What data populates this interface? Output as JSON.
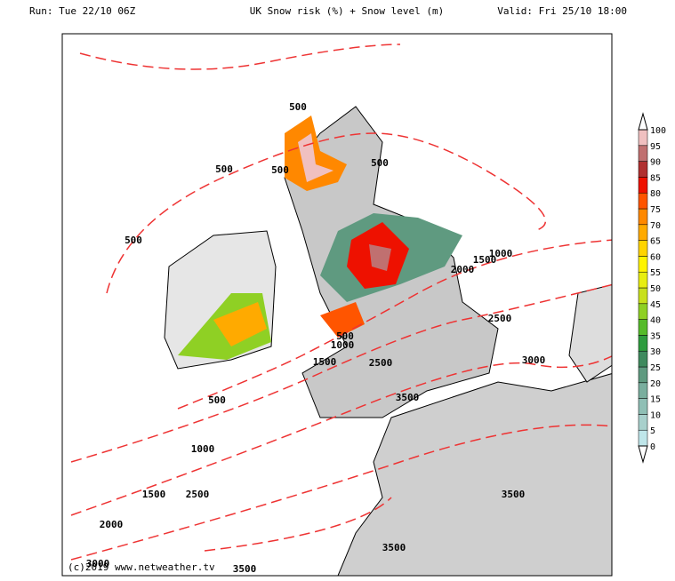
{
  "header": {
    "run": "Run: Tue 22/10 06Z",
    "title": "UK Snow risk (%) + Snow level (m)",
    "valid": "Valid: Fri 25/10 18:00"
  },
  "snow_level_labels": [
    500,
    500,
    500,
    500,
    500,
    1000,
    1500,
    2000,
    2500,
    500,
    1000,
    1500,
    2500,
    3000,
    3500,
    500,
    1000,
    1500,
    2500,
    2000,
    3500,
    3500,
    3000,
    3500
  ],
  "colorbar": {
    "levels": [
      0,
      5,
      10,
      15,
      20,
      25,
      30,
      35,
      40,
      45,
      50,
      55,
      60,
      65,
      70,
      75,
      80,
      85,
      90,
      95,
      100
    ],
    "colors": [
      "#bfe6ea",
      "#a8d0cc",
      "#8fbfb5",
      "#79ae9e",
      "#5f9a80",
      "#3f8a5e",
      "#2e9c3e",
      "#55bb2a",
      "#8fd024",
      "#c8e01c",
      "#e8ee10",
      "#fff400",
      "#ffd400",
      "#ffaa00",
      "#ff8800",
      "#ff5500",
      "#ee1100",
      "#b03030",
      "#c07070",
      "#f0c0c0"
    ]
  },
  "credit": "(c)2019 www.netweather.tv"
}
